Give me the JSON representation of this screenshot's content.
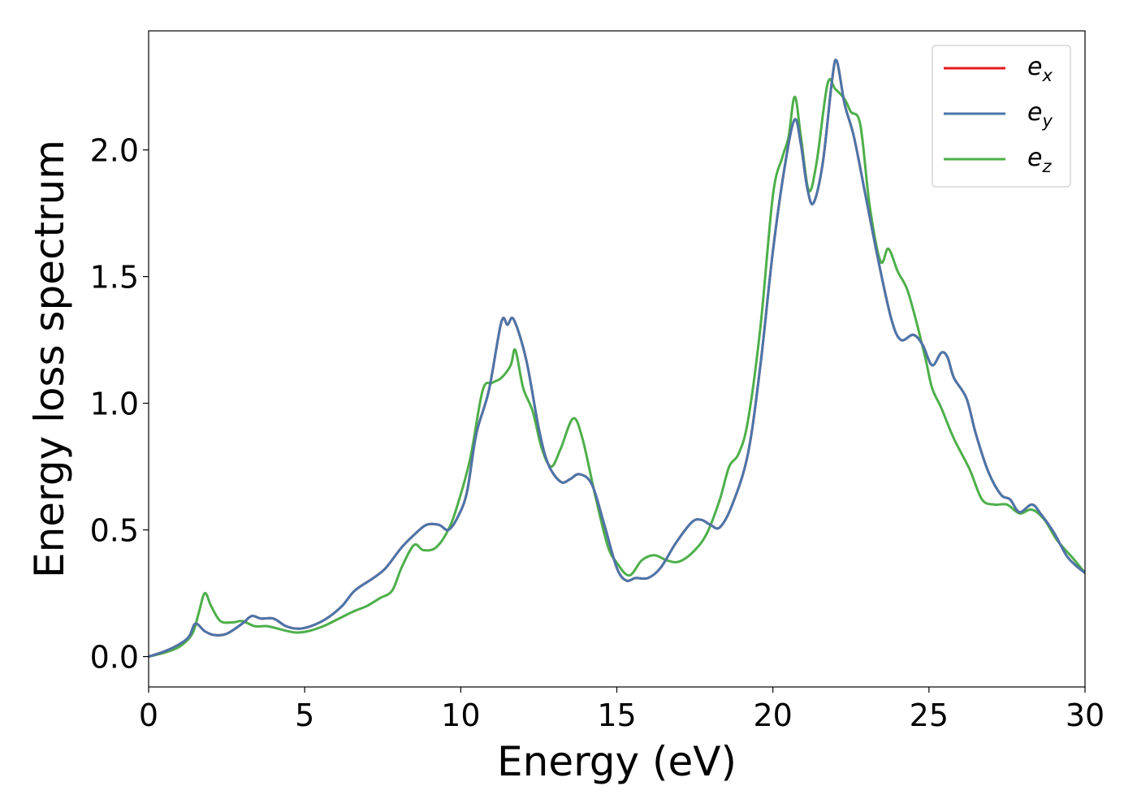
{
  "chart_data": {
    "type": "line",
    "title": "",
    "xlabel": "Energy (eV)",
    "ylabel": "Energy loss spectrum",
    "xlim": [
      0,
      30
    ],
    "ylim": [
      -0.12,
      2.47
    ],
    "xticks": [
      0,
      5,
      10,
      15,
      20,
      25,
      30
    ],
    "xtick_labels": [
      "0",
      "5",
      "10",
      "15",
      "20",
      "25",
      "30"
    ],
    "yticks": [
      0.0,
      0.5,
      1.0,
      1.5,
      2.0
    ],
    "ytick_labels": [
      "0.0",
      "0.5",
      "1.0",
      "1.5",
      "2.0"
    ],
    "grid": false,
    "legend_position": "top-right",
    "series": [
      {
        "name": "e",
        "sub": "x",
        "color": "#e41a1c",
        "points": [
          [
            0,
            0
          ],
          [
            0.5,
            0.02
          ],
          [
            1,
            0.05
          ],
          [
            1.3,
            0.08
          ],
          [
            1.5,
            0.13
          ],
          [
            1.8,
            0.1
          ],
          [
            2.1,
            0.085
          ],
          [
            2.5,
            0.09
          ],
          [
            3,
            0.13
          ],
          [
            3.3,
            0.16
          ],
          [
            3.6,
            0.15
          ],
          [
            4,
            0.15
          ],
          [
            4.4,
            0.12
          ],
          [
            4.8,
            0.11
          ],
          [
            5.2,
            0.12
          ],
          [
            5.7,
            0.15
          ],
          [
            6.2,
            0.2
          ],
          [
            6.6,
            0.26
          ],
          [
            7.2,
            0.31
          ],
          [
            7.6,
            0.35
          ],
          [
            8.1,
            0.43
          ],
          [
            8.5,
            0.48
          ],
          [
            8.9,
            0.52
          ],
          [
            9.3,
            0.52
          ],
          [
            9.6,
            0.5
          ],
          [
            9.9,
            0.55
          ],
          [
            10.2,
            0.65
          ],
          [
            10.5,
            0.88
          ],
          [
            10.9,
            1.05
          ],
          [
            11.3,
            1.32
          ],
          [
            11.5,
            1.31
          ],
          [
            11.7,
            1.33
          ],
          [
            12.1,
            1.17
          ],
          [
            12.5,
            0.9
          ],
          [
            12.8,
            0.76
          ],
          [
            13.2,
            0.69
          ],
          [
            13.5,
            0.7
          ],
          [
            13.8,
            0.72
          ],
          [
            14.2,
            0.68
          ],
          [
            14.6,
            0.52
          ],
          [
            15,
            0.35
          ],
          [
            15.3,
            0.3
          ],
          [
            15.6,
            0.31
          ],
          [
            16,
            0.31
          ],
          [
            16.4,
            0.35
          ],
          [
            16.9,
            0.45
          ],
          [
            17.4,
            0.53
          ],
          [
            17.7,
            0.54
          ],
          [
            18,
            0.52
          ],
          [
            18.3,
            0.51
          ],
          [
            18.7,
            0.6
          ],
          [
            19.2,
            0.8
          ],
          [
            19.6,
            1.15
          ],
          [
            20,
            1.6
          ],
          [
            20.4,
            1.95
          ],
          [
            20.7,
            2.12
          ],
          [
            20.9,
            2.02
          ],
          [
            21.1,
            1.85
          ],
          [
            21.3,
            1.79
          ],
          [
            21.6,
            1.95
          ],
          [
            21.9,
            2.28
          ],
          [
            22.05,
            2.35
          ],
          [
            22.3,
            2.18
          ],
          [
            22.6,
            2.05
          ],
          [
            23,
            1.8
          ],
          [
            23.4,
            1.55
          ],
          [
            23.8,
            1.33
          ],
          [
            24.1,
            1.25
          ],
          [
            24.5,
            1.27
          ],
          [
            24.8,
            1.23
          ],
          [
            25.1,
            1.15
          ],
          [
            25.4,
            1.2
          ],
          [
            25.6,
            1.18
          ],
          [
            25.8,
            1.1
          ],
          [
            26.2,
            1.02
          ],
          [
            26.5,
            0.88
          ],
          [
            26.9,
            0.73
          ],
          [
            27.3,
            0.64
          ],
          [
            27.6,
            0.62
          ],
          [
            27.9,
            0.57
          ],
          [
            28.3,
            0.6
          ],
          [
            28.6,
            0.56
          ],
          [
            29,
            0.49
          ],
          [
            29.4,
            0.4
          ],
          [
            29.7,
            0.36
          ],
          [
            30,
            0.33
          ]
        ]
      },
      {
        "name": "e",
        "sub": "y",
        "color": "#4a76aa",
        "points": [
          [
            0,
            0
          ],
          [
            0.5,
            0.02
          ],
          [
            1,
            0.05
          ],
          [
            1.3,
            0.08
          ],
          [
            1.5,
            0.13
          ],
          [
            1.8,
            0.1
          ],
          [
            2.1,
            0.085
          ],
          [
            2.5,
            0.09
          ],
          [
            3,
            0.13
          ],
          [
            3.3,
            0.16
          ],
          [
            3.6,
            0.15
          ],
          [
            4,
            0.15
          ],
          [
            4.4,
            0.12
          ],
          [
            4.8,
            0.11
          ],
          [
            5.2,
            0.12
          ],
          [
            5.7,
            0.15
          ],
          [
            6.2,
            0.2
          ],
          [
            6.6,
            0.26
          ],
          [
            7.2,
            0.31
          ],
          [
            7.6,
            0.35
          ],
          [
            8.1,
            0.43
          ],
          [
            8.5,
            0.48
          ],
          [
            8.9,
            0.52
          ],
          [
            9.3,
            0.52
          ],
          [
            9.6,
            0.5
          ],
          [
            9.9,
            0.55
          ],
          [
            10.2,
            0.65
          ],
          [
            10.5,
            0.88
          ],
          [
            10.9,
            1.05
          ],
          [
            11.3,
            1.32
          ],
          [
            11.5,
            1.31
          ],
          [
            11.7,
            1.33
          ],
          [
            12.1,
            1.17
          ],
          [
            12.5,
            0.9
          ],
          [
            12.8,
            0.76
          ],
          [
            13.2,
            0.69
          ],
          [
            13.5,
            0.7
          ],
          [
            13.8,
            0.72
          ],
          [
            14.2,
            0.68
          ],
          [
            14.6,
            0.52
          ],
          [
            15,
            0.35
          ],
          [
            15.3,
            0.3
          ],
          [
            15.6,
            0.31
          ],
          [
            16,
            0.31
          ],
          [
            16.4,
            0.35
          ],
          [
            16.9,
            0.45
          ],
          [
            17.4,
            0.53
          ],
          [
            17.7,
            0.54
          ],
          [
            18,
            0.52
          ],
          [
            18.3,
            0.51
          ],
          [
            18.7,
            0.6
          ],
          [
            19.2,
            0.8
          ],
          [
            19.6,
            1.15
          ],
          [
            20,
            1.6
          ],
          [
            20.4,
            1.95
          ],
          [
            20.7,
            2.12
          ],
          [
            20.9,
            2.02
          ],
          [
            21.1,
            1.85
          ],
          [
            21.3,
            1.79
          ],
          [
            21.6,
            1.95
          ],
          [
            21.9,
            2.28
          ],
          [
            22.05,
            2.35
          ],
          [
            22.3,
            2.18
          ],
          [
            22.6,
            2.05
          ],
          [
            23,
            1.8
          ],
          [
            23.4,
            1.55
          ],
          [
            23.8,
            1.33
          ],
          [
            24.1,
            1.25
          ],
          [
            24.5,
            1.27
          ],
          [
            24.8,
            1.23
          ],
          [
            25.1,
            1.15
          ],
          [
            25.4,
            1.2
          ],
          [
            25.6,
            1.18
          ],
          [
            25.8,
            1.1
          ],
          [
            26.2,
            1.02
          ],
          [
            26.5,
            0.88
          ],
          [
            26.9,
            0.73
          ],
          [
            27.3,
            0.64
          ],
          [
            27.6,
            0.62
          ],
          [
            27.9,
            0.57
          ],
          [
            28.3,
            0.6
          ],
          [
            28.6,
            0.56
          ],
          [
            29,
            0.49
          ],
          [
            29.4,
            0.4
          ],
          [
            29.7,
            0.36
          ],
          [
            30,
            0.33
          ]
        ]
      },
      {
        "name": "e",
        "sub": "z",
        "color": "#4daf4a",
        "points": [
          [
            0,
            0
          ],
          [
            0.5,
            0.015
          ],
          [
            1,
            0.04
          ],
          [
            1.4,
            0.09
          ],
          [
            1.6,
            0.17
          ],
          [
            1.8,
            0.25
          ],
          [
            2,
            0.2
          ],
          [
            2.3,
            0.14
          ],
          [
            2.7,
            0.135
          ],
          [
            3,
            0.14
          ],
          [
            3.4,
            0.12
          ],
          [
            3.8,
            0.12
          ],
          [
            4.3,
            0.105
          ],
          [
            4.7,
            0.095
          ],
          [
            5.1,
            0.1
          ],
          [
            5.6,
            0.12
          ],
          [
            6.1,
            0.15
          ],
          [
            6.6,
            0.18
          ],
          [
            7,
            0.2
          ],
          [
            7.4,
            0.23
          ],
          [
            7.8,
            0.26
          ],
          [
            8.1,
            0.35
          ],
          [
            8.5,
            0.44
          ],
          [
            8.8,
            0.42
          ],
          [
            9.2,
            0.43
          ],
          [
            9.6,
            0.5
          ],
          [
            9.9,
            0.6
          ],
          [
            10.3,
            0.78
          ],
          [
            10.7,
            1.05
          ],
          [
            11,
            1.08
          ],
          [
            11.3,
            1.1
          ],
          [
            11.6,
            1.15
          ],
          [
            11.75,
            1.21
          ],
          [
            12,
            1.06
          ],
          [
            12.3,
            0.97
          ],
          [
            12.6,
            0.82
          ],
          [
            12.9,
            0.75
          ],
          [
            13.2,
            0.82
          ],
          [
            13.6,
            0.94
          ],
          [
            13.9,
            0.86
          ],
          [
            14.3,
            0.64
          ],
          [
            14.7,
            0.44
          ],
          [
            15,
            0.37
          ],
          [
            15.4,
            0.32
          ],
          [
            15.8,
            0.38
          ],
          [
            16.2,
            0.4
          ],
          [
            16.6,
            0.38
          ],
          [
            17,
            0.375
          ],
          [
            17.5,
            0.42
          ],
          [
            17.9,
            0.49
          ],
          [
            18.3,
            0.62
          ],
          [
            18.6,
            0.75
          ],
          [
            18.9,
            0.8
          ],
          [
            19.2,
            0.93
          ],
          [
            19.6,
            1.3
          ],
          [
            20,
            1.82
          ],
          [
            20.3,
            1.97
          ],
          [
            20.5,
            2.05
          ],
          [
            20.7,
            2.21
          ],
          [
            20.9,
            2.05
          ],
          [
            21.15,
            1.84
          ],
          [
            21.4,
            1.95
          ],
          [
            21.75,
            2.26
          ],
          [
            22,
            2.24
          ],
          [
            22.3,
            2.2
          ],
          [
            22.5,
            2.15
          ],
          [
            22.8,
            2.1
          ],
          [
            23.1,
            1.78
          ],
          [
            23.45,
            1.56
          ],
          [
            23.7,
            1.61
          ],
          [
            24,
            1.52
          ],
          [
            24.3,
            1.45
          ],
          [
            24.6,
            1.32
          ],
          [
            24.9,
            1.17
          ],
          [
            25.1,
            1.06
          ],
          [
            25.4,
            0.98
          ],
          [
            25.8,
            0.86
          ],
          [
            26.3,
            0.74
          ],
          [
            26.7,
            0.62
          ],
          [
            27.1,
            0.6
          ],
          [
            27.5,
            0.6
          ],
          [
            27.9,
            0.565
          ],
          [
            28.3,
            0.58
          ],
          [
            28.7,
            0.54
          ],
          [
            29.1,
            0.46
          ],
          [
            29.6,
            0.39
          ],
          [
            30,
            0.33
          ]
        ]
      }
    ]
  }
}
